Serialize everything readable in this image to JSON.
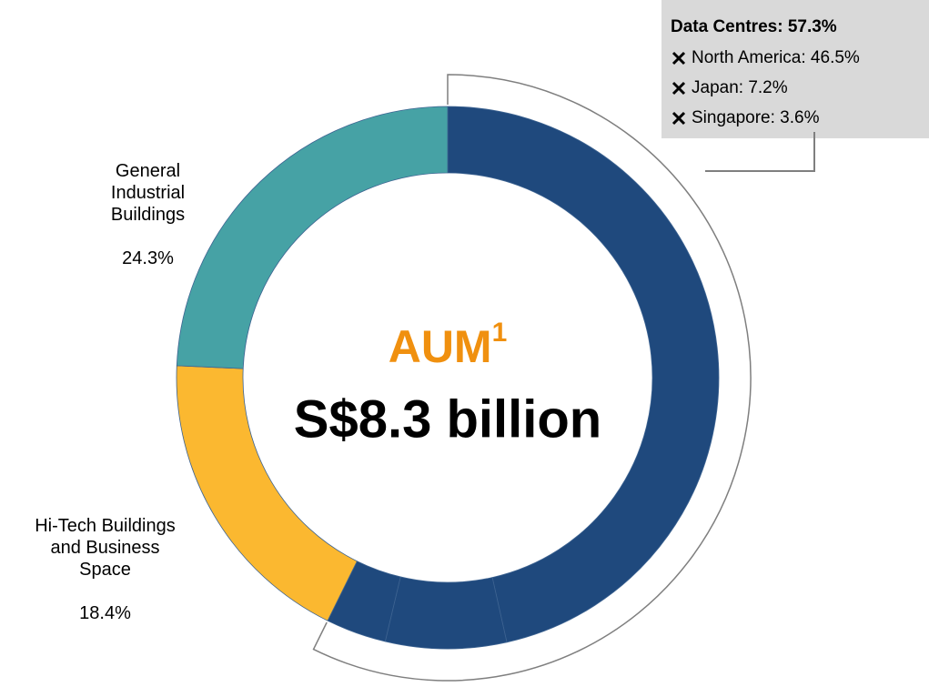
{
  "chart_data": {
    "type": "pie",
    "donut": true,
    "center_title": "AUM",
    "center_title_superscript": "1",
    "center_subtitle": "S$8.3 billion",
    "categories": [
      "North America: 46.5%",
      "Japan: 7.2%",
      "Singapore: 3.6%",
      "Hi-Tech Buildings and Business Space",
      "General Industrial Buildings"
    ],
    "values": [
      46.5,
      7.2,
      3.6,
      18.4,
      24.3
    ],
    "value_labels": [
      null,
      null,
      null,
      "18.4%",
      "24.3%"
    ],
    "colors": [
      "#1f497d",
      "#1f497d",
      "#1f497d",
      "#fbb830",
      "#46a2a5"
    ],
    "groups": [
      {
        "label": "Data Centres: 57.3%",
        "value": 57.3
      }
    ]
  }
}
